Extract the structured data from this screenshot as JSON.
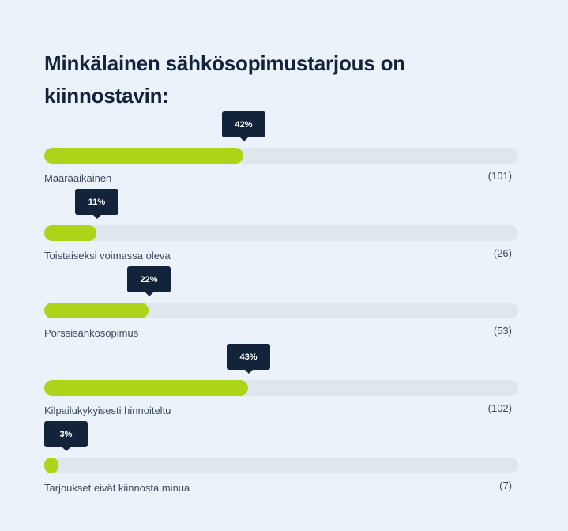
{
  "poll": {
    "title": "Minkälainen sähkösopimustarjous on kiinnostavin:",
    "options": [
      {
        "label": "Määräaikainen",
        "percent": 42,
        "percent_label": "42%",
        "count_label": "(101)"
      },
      {
        "label": "Toistaiseksi voimassa oleva",
        "percent": 11,
        "percent_label": "11%",
        "count_label": "(26)"
      },
      {
        "label": "Pörssisähkösopimus",
        "percent": 22,
        "percent_label": "22%",
        "count_label": "(53)"
      },
      {
        "label": "Kilpailukykyisesti hinnoiteltu",
        "percent": 43,
        "percent_label": "43%",
        "count_label": "(102)"
      },
      {
        "label": "Tarjoukset eivät kiinnosta minua",
        "percent": 3,
        "percent_label": "3%",
        "count_label": "(7)"
      }
    ],
    "colors": {
      "fill": "#acd51a",
      "track": "#dfe6ee",
      "tooltip": "#13233a"
    }
  }
}
